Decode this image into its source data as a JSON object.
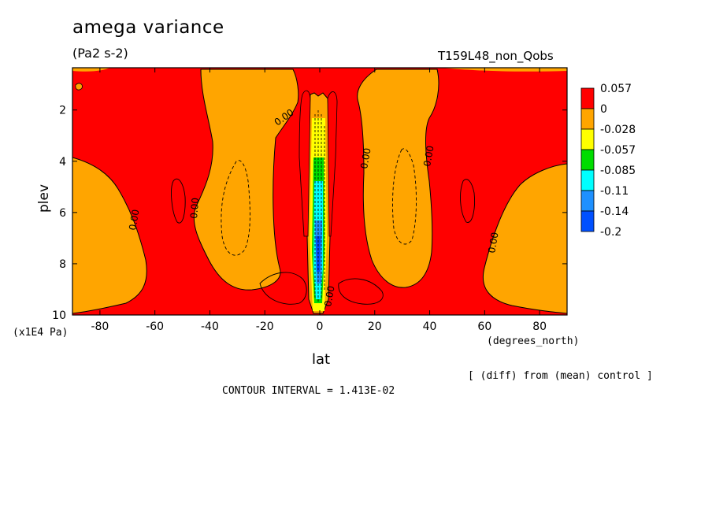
{
  "header": {
    "title": "amega variance",
    "units": "(Pa2 s-2)",
    "run": "T159L48_non_Qobs"
  },
  "footer": {
    "diff_note": "[ (diff) from (mean) control ]",
    "contour_interval": "CONTOUR INTERVAL = 1.413E-02"
  },
  "chart_data": {
    "type": "heatmap",
    "title": "amega variance",
    "subtitle": "(Pa2 s-2)",
    "xlabel": "lat",
    "xunit": "(degrees_north)",
    "ylabel": "plev",
    "yunit": "(x1E4 Pa)",
    "xlim": [
      -90,
      90
    ],
    "ylim": [
      10,
      0.35
    ],
    "x_ticks": [
      "-80",
      "-60",
      "-40",
      "-20",
      "0",
      "20",
      "40",
      "60",
      "80"
    ],
    "x_tick_values": [
      -80,
      -60,
      -40,
      -20,
      0,
      20,
      40,
      60,
      80
    ],
    "y_ticks": [
      "2",
      "4",
      "6",
      "8",
      "10"
    ],
    "y_tick_values": [
      2,
      4,
      6,
      8,
      10
    ],
    "contour_label": "0.00",
    "colorbar": {
      "labels": [
        "0.057",
        "0",
        "-0.028",
        "-0.057",
        "-0.085",
        "-0.11",
        "-0.14",
        "-0.2"
      ],
      "colors": [
        "#ff0000",
        "#ffa500",
        "#ffff00",
        "#00dd00",
        "#00ffff",
        "#1e90ff",
        "#0050ff"
      ]
    },
    "colors": {
      "positive": "#ff0000",
      "slightly_negative": "#ffa500"
    }
  }
}
